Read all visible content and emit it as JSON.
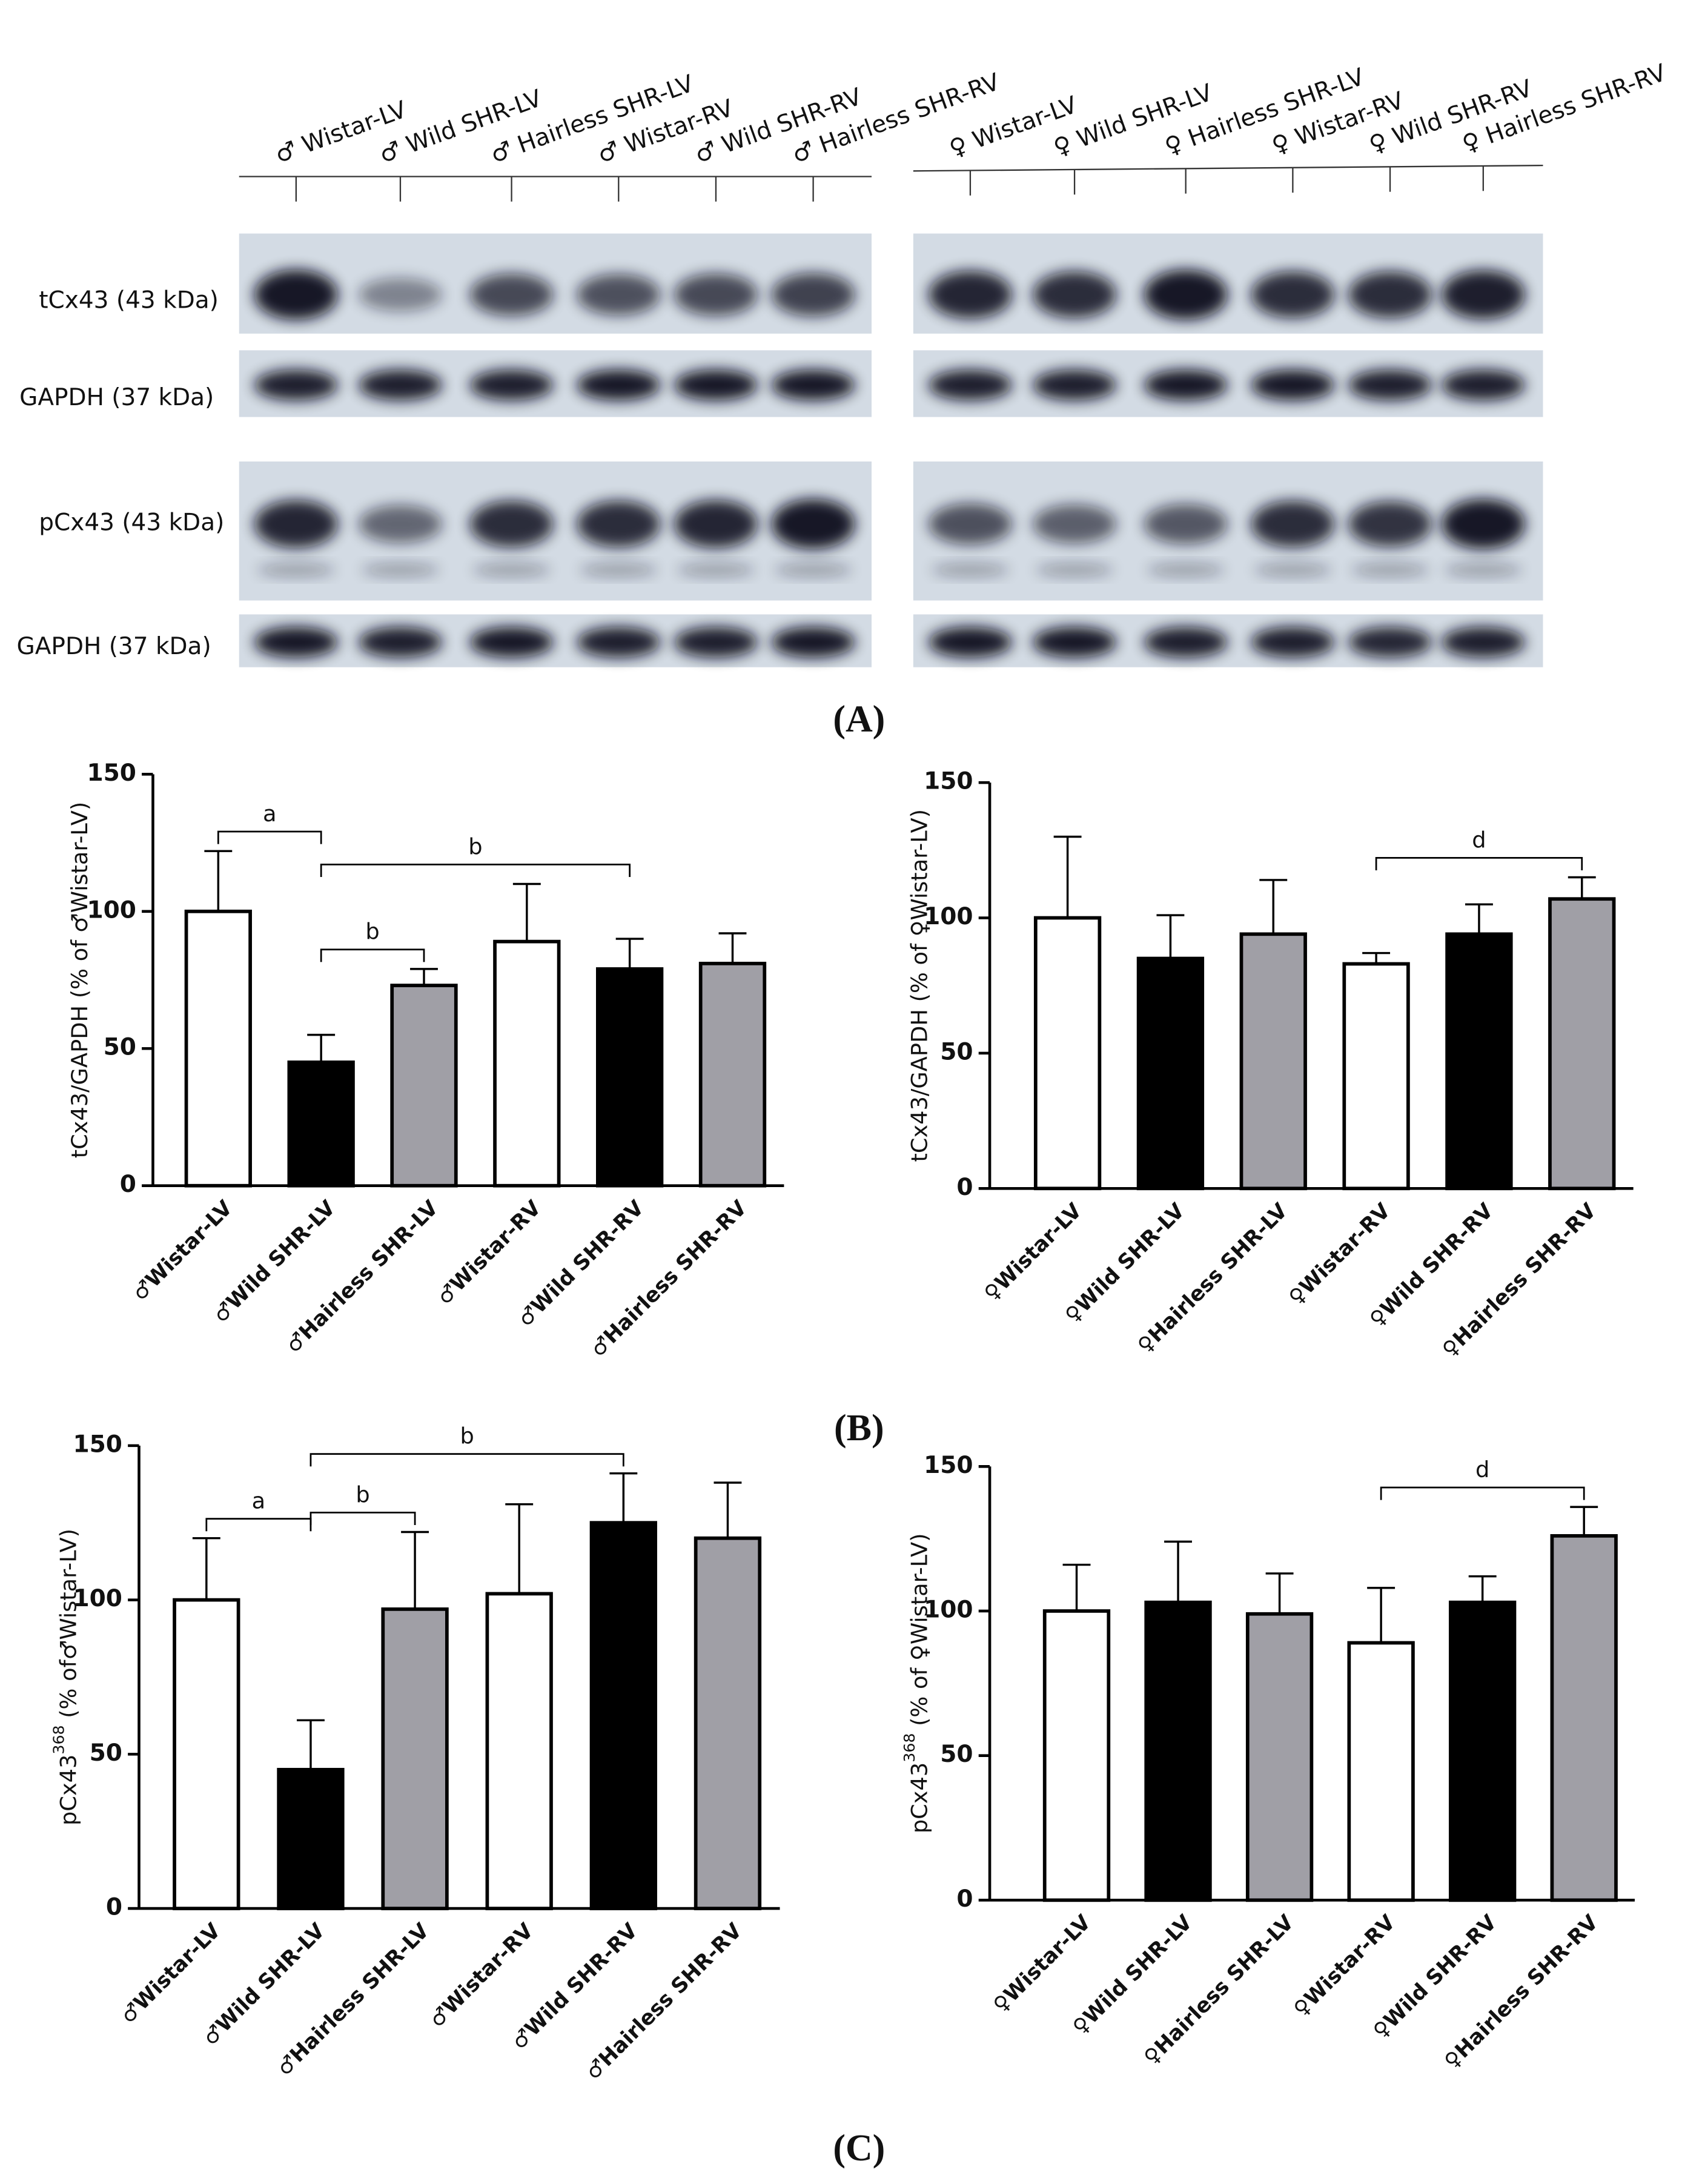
{
  "blot": {
    "male_lanes": [
      "♂ Wistar-LV",
      "♂ Wild SHR-LV",
      "♂ Hairless SHR-LV",
      "♂ Wistar-RV",
      "♂ Wild SHR-RV",
      "♂ Hairless SHR-RV"
    ],
    "female_lanes": [
      "♀ Wistar-LV",
      "♀ Wild SHR-LV",
      "♀ Hairless SHR-LV",
      "♀ Wistar-RV",
      "♀ Wild SHR-RV",
      "♀ Hairless SHR-RV"
    ],
    "rows": [
      "tCx43 (43 kDa)",
      "GAPDH (37 kDa)",
      "pCx43 (43 kDa)",
      "GAPDH  (37 kDa)"
    ]
  },
  "panel_labels": [
    "(A)",
    "(B)",
    "(C)"
  ],
  "chart_data": [
    {
      "type": "bar",
      "ylabel": "tCx43/GAPDH (% of ♂Wistar-LV)",
      "categories": [
        "♂Wistar-LV",
        "♂Wild SHR-LV",
        "♂Hairless SHR-LV",
        "♂Wistar-RV",
        "♂Wild SHR-RV",
        "♂Hairless SHR-RV"
      ],
      "values": [
        100,
        45,
        73,
        89,
        79,
        81
      ],
      "errors": [
        22,
        10,
        6,
        21,
        11,
        11
      ],
      "colors": [
        "#ffffff",
        "#000000",
        "#a09fa6",
        "#ffffff",
        "#000000",
        "#a09fa6"
      ],
      "ylim": [
        0,
        150
      ],
      "yticks": [
        0,
        50,
        100,
        150
      ],
      "annotations": [
        {
          "text": "a",
          "between": [
            0,
            1
          ]
        },
        {
          "text": "b",
          "between": [
            1,
            4
          ]
        },
        {
          "text": "b",
          "between": [
            1,
            2
          ]
        }
      ]
    },
    {
      "type": "bar",
      "ylabel": "tCx43/GAPDH (% of ♀Wistar-LV)",
      "categories": [
        "♀Wistar-LV",
        "♀Wild SHR-LV",
        "♀Hairless SHR-LV",
        "♀Wistar-RV",
        "♀Wild SHR-RV",
        "♀Hairless SHR-RV"
      ],
      "values": [
        100,
        85,
        94,
        83,
        94,
        107
      ],
      "errors": [
        30,
        16,
        20,
        4,
        11,
        8
      ],
      "colors": [
        "#ffffff",
        "#000000",
        "#a09fa6",
        "#ffffff",
        "#000000",
        "#a09fa6"
      ],
      "ylim": [
        0,
        150
      ],
      "yticks": [
        0,
        50,
        100,
        150
      ],
      "annotations": [
        {
          "text": "d",
          "between": [
            3,
            5
          ]
        }
      ]
    },
    {
      "type": "bar",
      "ylabel": "pCx43",
      "ylabel_sup": "368",
      "ylabel_rest": " (% of♂Wistar-LV)",
      "categories": [
        "♂Wistar-LV",
        "♂Wild SHR-LV",
        "♂Hairless SHR-LV",
        "♂Wistar-RV",
        "♂Wild SHR-RV",
        "♂Hairless SHR-RV"
      ],
      "values": [
        100,
        45,
        97,
        102,
        125,
        120
      ],
      "errors": [
        20,
        16,
        25,
        29,
        16,
        18
      ],
      "colors": [
        "#ffffff",
        "#000000",
        "#a09fa6",
        "#ffffff",
        "#000000",
        "#a09fa6"
      ],
      "ylim": [
        0,
        150
      ],
      "yticks": [
        0,
        50,
        100,
        150
      ],
      "annotations": [
        {
          "text": "a",
          "between": [
            0,
            1
          ]
        },
        {
          "text": "b",
          "between": [
            1,
            4
          ]
        },
        {
          "text": "b",
          "between": [
            1,
            2
          ]
        }
      ]
    },
    {
      "type": "bar",
      "ylabel": "pCx43",
      "ylabel_sup": "368",
      "ylabel_rest": " (% of ♀Wistar-LV)",
      "categories": [
        "♀Wistar-LV",
        "♀Wild SHR-LV",
        "♀Hairless SHR-LV",
        "♀Wistar-RV",
        "♀Wild SHR-RV",
        "♀Hairless SHR-RV"
      ],
      "values": [
        100,
        103,
        99,
        89,
        103,
        126
      ],
      "errors": [
        16,
        21,
        14,
        19,
        9,
        10
      ],
      "colors": [
        "#ffffff",
        "#000000",
        "#a09fa6",
        "#ffffff",
        "#000000",
        "#a09fa6"
      ],
      "ylim": [
        0,
        150
      ],
      "yticks": [
        0,
        50,
        100,
        150
      ],
      "annotations": [
        {
          "text": "d",
          "between": [
            3,
            5
          ]
        }
      ]
    }
  ]
}
